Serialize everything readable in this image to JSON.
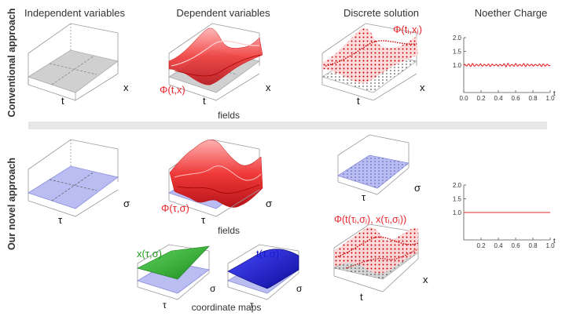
{
  "column_headers": {
    "independent": "Independent variables",
    "dependent": "Dependent variables",
    "discrete": "Discrete solution",
    "noether": "Noether Charge"
  },
  "rows": {
    "conventional": "Conventional approach",
    "novel": "Our novel approach"
  },
  "labels": {
    "t": "t",
    "x": "x",
    "tau": "τ",
    "sigma": "σ",
    "phi_tx": "Φ(t,x)",
    "phi_ti_xj": "Φ(tᵢ,xⱼ)",
    "phi_tau_sigma": "Φ(τ,σ)",
    "phi_composite": "Φ(t(τᵢ,σⱼ), x(τᵢ,σⱼ))",
    "fields": "fields",
    "x_map": "x(τ,σ)",
    "t_map": "t(τ,σ)",
    "coordinate_maps": "coordinate maps"
  },
  "colors": {
    "field_red": "#e8262b",
    "grey_plane": "#d0d0d0",
    "blue_plane": "#b9bdf2",
    "green_map": "#2fa82f",
    "blue_map": "#1a1ad0",
    "separator": "#e6e6e6"
  },
  "chart_data": [
    {
      "type": "line",
      "title": "",
      "x": [
        0.0,
        0.1,
        0.2,
        0.3,
        0.4,
        0.5,
        0.6,
        0.7,
        0.8,
        0.9,
        1.0
      ],
      "series": [
        {
          "values_note": "oscillation",
          "values": [
            1.0,
            1.04,
            0.97,
            1.03,
            0.98,
            1.05,
            0.96,
            1.04,
            0.98,
            1.03,
            1.0
          ]
        }
      ],
      "xlim": [
        0,
        1.0
      ],
      "ylim": [
        0,
        2.0
      ],
      "xticks": [
        "0.0",
        "0.2",
        "0.4",
        "0.6",
        "0.8",
        "1.0"
      ],
      "yticks": [
        "1.0",
        "1.5",
        "2.0"
      ],
      "xlabel": "t",
      "color": "#e8262b"
    },
    {
      "type": "line",
      "title": "",
      "x": [
        0.0,
        1.0
      ],
      "series": [
        {
          "values": [
            1.0,
            1.0
          ]
        }
      ],
      "xlim": [
        0,
        1.0
      ],
      "ylim": [
        0,
        2.0
      ],
      "xticks": [
        "0.2",
        "0.4",
        "0.6",
        "0.8",
        "1.0"
      ],
      "yticks": [
        "1.0",
        "1.5",
        "2.0"
      ],
      "xlabel": "t",
      "color": "#e8262b"
    }
  ]
}
